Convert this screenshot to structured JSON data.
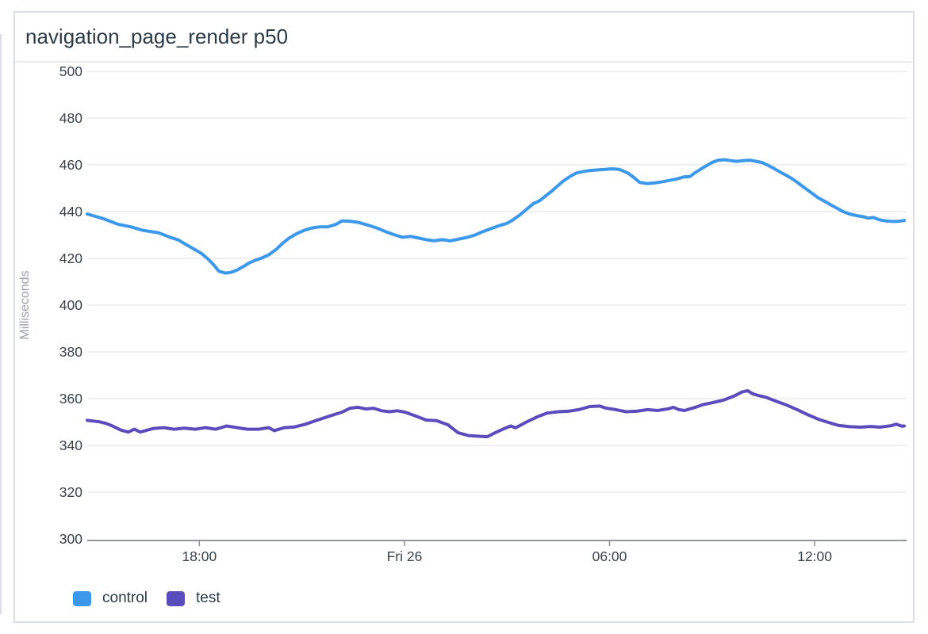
{
  "panel": {
    "title": "navigation_page_render p50"
  },
  "colors": {
    "background": "#ffffff",
    "panel_border": "#d9dee8",
    "title_divider": "#e9ecf1",
    "title_text": "#2a3a47",
    "tick_label": "#39434b",
    "axis_unit_label": "#9ba1a9",
    "gridline": "#ececec",
    "axis_line": "#6f777d",
    "control_series": "#3b98ea",
    "test_series": "#5b4cbe"
  },
  "chart_data": {
    "type": "line",
    "title": "navigation_page_render p50",
    "xlabel": "",
    "ylabel": "Milliseconds",
    "ylim": [
      300,
      500
    ],
    "y_tick_step": 20,
    "grid": "horizontal",
    "legend_position": "bottom-left",
    "x_hours_range": [
      0,
      23.9
    ],
    "x_ticks": [
      {
        "h": 3.28,
        "label": "18:00"
      },
      {
        "h": 9.28,
        "label": "Fri 26"
      },
      {
        "h": 15.28,
        "label": "06:00"
      },
      {
        "h": 21.28,
        "label": "12:00"
      }
    ],
    "series": [
      {
        "name": "control",
        "color": "#3b98ea",
        "points": [
          [
            0.0,
            439
          ],
          [
            0.46,
            437
          ],
          [
            0.92,
            434.5
          ],
          [
            1.27,
            433.5
          ],
          [
            1.62,
            432
          ],
          [
            2.08,
            431
          ],
          [
            2.42,
            429
          ],
          [
            2.65,
            428
          ],
          [
            2.88,
            426
          ],
          [
            3.12,
            424
          ],
          [
            3.35,
            422
          ],
          [
            3.51,
            420
          ],
          [
            3.65,
            418
          ],
          [
            3.74,
            416.5
          ],
          [
            3.85,
            414.5
          ],
          [
            4.04,
            413.7
          ],
          [
            4.2,
            414
          ],
          [
            4.38,
            415
          ],
          [
            4.57,
            416.5
          ],
          [
            4.73,
            418
          ],
          [
            4.89,
            419
          ],
          [
            5.08,
            420
          ],
          [
            5.31,
            421.5
          ],
          [
            5.54,
            424
          ],
          [
            5.72,
            426.5
          ],
          [
            5.89,
            428.5
          ],
          [
            6.12,
            430.5
          ],
          [
            6.35,
            432
          ],
          [
            6.58,
            433
          ],
          [
            6.81,
            433.5
          ],
          [
            7.04,
            433.5
          ],
          [
            7.27,
            434.5
          ],
          [
            7.45,
            436
          ],
          [
            7.73,
            435.8
          ],
          [
            7.96,
            435.3
          ],
          [
            8.19,
            434.3
          ],
          [
            8.47,
            433
          ],
          [
            8.72,
            431.5
          ],
          [
            9.0,
            430
          ],
          [
            9.23,
            429
          ],
          [
            9.46,
            429.4
          ],
          [
            9.65,
            428.8
          ],
          [
            9.92,
            428
          ],
          [
            10.15,
            427.5
          ],
          [
            10.38,
            428
          ],
          [
            10.62,
            427.5
          ],
          [
            10.89,
            428.3
          ],
          [
            11.12,
            429
          ],
          [
            11.35,
            430
          ],
          [
            11.58,
            431.5
          ],
          [
            11.77,
            432.5
          ],
          [
            12.05,
            434
          ],
          [
            12.28,
            435
          ],
          [
            12.46,
            436.5
          ],
          [
            12.65,
            438.5
          ],
          [
            12.85,
            441
          ],
          [
            13.06,
            443.5
          ],
          [
            13.22,
            444.5
          ],
          [
            13.39,
            446.5
          ],
          [
            13.57,
            448.5
          ],
          [
            13.76,
            451
          ],
          [
            13.92,
            453
          ],
          [
            14.12,
            455
          ],
          [
            14.31,
            456.5
          ],
          [
            14.47,
            457
          ],
          [
            14.66,
            457.5
          ],
          [
            14.89,
            457.8
          ],
          [
            15.12,
            458
          ],
          [
            15.35,
            458.3
          ],
          [
            15.58,
            458
          ],
          [
            15.81,
            456.5
          ],
          [
            16.0,
            454.5
          ],
          [
            16.16,
            452.5
          ],
          [
            16.39,
            452
          ],
          [
            16.62,
            452.3
          ],
          [
            16.85,
            452.8
          ],
          [
            17.08,
            453.5
          ],
          [
            17.26,
            454
          ],
          [
            17.45,
            454.8
          ],
          [
            17.63,
            455
          ],
          [
            17.77,
            456.5
          ],
          [
            17.93,
            458
          ],
          [
            18.1,
            459.5
          ],
          [
            18.28,
            461
          ],
          [
            18.46,
            462
          ],
          [
            18.65,
            462.2
          ],
          [
            18.83,
            461.8
          ],
          [
            18.99,
            461.5
          ],
          [
            19.18,
            461.8
          ],
          [
            19.39,
            462
          ],
          [
            19.57,
            461.5
          ],
          [
            19.73,
            461
          ],
          [
            19.89,
            460
          ],
          [
            20.08,
            458.5
          ],
          [
            20.26,
            457
          ],
          [
            20.45,
            455.5
          ],
          [
            20.63,
            454
          ],
          [
            20.82,
            452
          ],
          [
            21.0,
            450
          ],
          [
            21.19,
            448
          ],
          [
            21.37,
            446
          ],
          [
            21.56,
            444.5
          ],
          [
            21.74,
            443
          ],
          [
            21.93,
            441.5
          ],
          [
            22.11,
            440
          ],
          [
            22.3,
            439
          ],
          [
            22.5,
            438.3
          ],
          [
            22.71,
            437.8
          ],
          [
            22.85,
            437.2
          ],
          [
            22.99,
            437.5
          ],
          [
            23.17,
            436.5
          ],
          [
            23.36,
            436
          ],
          [
            23.54,
            435.8
          ],
          [
            23.72,
            435.8
          ],
          [
            23.9,
            436.2
          ]
        ]
      },
      {
        "name": "test",
        "color": "#5b4cbe",
        "points": [
          [
            0.0,
            350.7
          ],
          [
            0.35,
            350.1
          ],
          [
            0.53,
            349.5
          ],
          [
            0.69,
            348.6
          ],
          [
            0.99,
            346.5
          ],
          [
            1.2,
            345.7
          ],
          [
            1.38,
            346.9
          ],
          [
            1.55,
            345.7
          ],
          [
            1.75,
            346.5
          ],
          [
            1.92,
            347.2
          ],
          [
            2.24,
            347.6
          ],
          [
            2.54,
            346.9
          ],
          [
            2.84,
            347.4
          ],
          [
            3.16,
            346.9
          ],
          [
            3.46,
            347.6
          ],
          [
            3.76,
            346.9
          ],
          [
            4.08,
            348.3
          ],
          [
            4.38,
            347.6
          ],
          [
            4.69,
            346.9
          ],
          [
            5.01,
            346.9
          ],
          [
            5.31,
            347.6
          ],
          [
            5.47,
            346.3
          ],
          [
            5.77,
            347.6
          ],
          [
            6.07,
            347.9
          ],
          [
            6.39,
            349.1
          ],
          [
            6.69,
            350.6
          ],
          [
            7.08,
            352.5
          ],
          [
            7.45,
            354.2
          ],
          [
            7.69,
            355.9
          ],
          [
            7.92,
            356.3
          ],
          [
            8.15,
            355.6
          ],
          [
            8.38,
            355.9
          ],
          [
            8.61,
            354.8
          ],
          [
            8.84,
            354.4
          ],
          [
            9.07,
            354.8
          ],
          [
            9.3,
            354.2
          ],
          [
            9.62,
            352.5
          ],
          [
            9.92,
            350.8
          ],
          [
            10.22,
            350.6
          ],
          [
            10.55,
            348.8
          ],
          [
            10.85,
            345.4
          ],
          [
            11.15,
            344.2
          ],
          [
            11.47,
            343.9
          ],
          [
            11.7,
            343.7
          ],
          [
            11.93,
            345.4
          ],
          [
            12.23,
            347.4
          ],
          [
            12.39,
            348.3
          ],
          [
            12.53,
            347.5
          ],
          [
            12.85,
            350.0
          ],
          [
            13.15,
            352.1
          ],
          [
            13.45,
            353.8
          ],
          [
            13.78,
            354.4
          ],
          [
            14.08,
            354.6
          ],
          [
            14.38,
            355.3
          ],
          [
            14.7,
            356.6
          ],
          [
            15.0,
            356.8
          ],
          [
            15.16,
            356.0
          ],
          [
            15.46,
            355.3
          ],
          [
            15.76,
            354.4
          ],
          [
            16.08,
            354.6
          ],
          [
            16.39,
            355.3
          ],
          [
            16.69,
            354.9
          ],
          [
            17.01,
            355.7
          ],
          [
            17.15,
            356.3
          ],
          [
            17.31,
            355.3
          ],
          [
            17.47,
            354.9
          ],
          [
            17.77,
            356.2
          ],
          [
            18.0,
            357.4
          ],
          [
            18.3,
            358.3
          ],
          [
            18.62,
            359.4
          ],
          [
            18.92,
            361.1
          ],
          [
            19.15,
            362.8
          ],
          [
            19.32,
            363.4
          ],
          [
            19.46,
            362.1
          ],
          [
            19.62,
            361.4
          ],
          [
            19.85,
            360.6
          ],
          [
            20.15,
            358.9
          ],
          [
            20.47,
            357.2
          ],
          [
            20.77,
            355.3
          ],
          [
            21.07,
            353.2
          ],
          [
            21.39,
            351.2
          ],
          [
            21.69,
            349.8
          ],
          [
            21.99,
            348.5
          ],
          [
            22.31,
            348.0
          ],
          [
            22.62,
            347.8
          ],
          [
            22.92,
            348.1
          ],
          [
            23.19,
            347.8
          ],
          [
            23.51,
            348.4
          ],
          [
            23.67,
            349.1
          ],
          [
            23.83,
            348.2
          ],
          [
            23.9,
            348.3
          ]
        ]
      }
    ]
  }
}
